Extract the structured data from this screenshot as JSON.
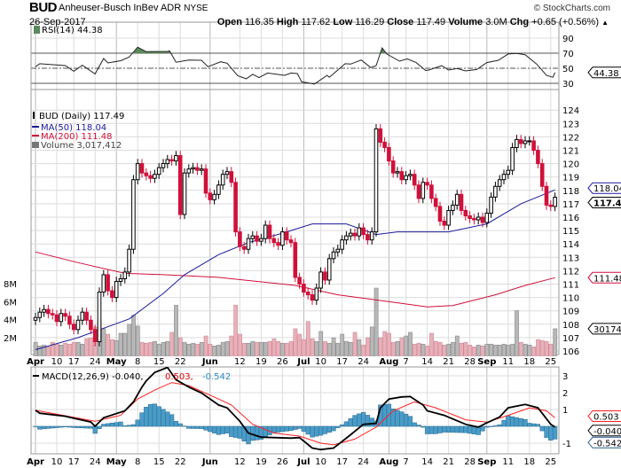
{
  "header": {
    "symbol": "BUD",
    "name": "Anheuser-Busch InBev ADR",
    "exchange": "NYSE",
    "copyright": "© StockCharts.com",
    "date": "26-Sep-2017",
    "open_label": "Open",
    "open": "116.35",
    "high_label": "High",
    "high": "117.62",
    "low_label": "Low",
    "low": "116.29",
    "close_label": "Close",
    "close": "117.49",
    "volume_label": "Volume",
    "volume": "3.0M",
    "chg_label": "Chg",
    "chg": "+0.65 (+0.56%)",
    "chg_arrow": "▲"
  },
  "colors": {
    "up": "#000000",
    "down": "#d0103a",
    "ma50": "#1a1a9c",
    "ma200": "#d0103a",
    "vol_up": "#b8b8b8",
    "vol_down": "#e8b0b8",
    "rsi_fill": "#5a8a5a",
    "hist": "#4a9cc8",
    "macd": "#000000",
    "signal": "#ff2020",
    "grid": "#dcdcdc",
    "month_grid": "#b8b8b8"
  },
  "chart_data": [
    {
      "type": "candlestick",
      "title": "BUD (Daily) 117.49",
      "legend": {
        "price": "BUD (Daily) 117.49",
        "ma50": "MA(50) 118.04",
        "ma200": "MA(200) 111.48",
        "volume": "Volume 3,017,412"
      },
      "y_ticks": [
        106,
        107,
        108,
        109,
        110,
        111,
        112,
        113,
        114,
        115,
        116,
        117,
        118,
        119,
        120,
        121,
        122,
        123,
        124
      ],
      "ylim": [
        106,
        125.5
      ],
      "volume_ticks": [
        {
          "label": "2M",
          "value": 2
        },
        {
          "label": "4M",
          "value": 4
        },
        {
          "label": "6M",
          "value": 6
        },
        {
          "label": "8M",
          "value": 8
        }
      ],
      "x_ticks": [
        {
          "label": "Apr",
          "day": 0,
          "month": true
        },
        {
          "label": "10",
          "day": 5
        },
        {
          "label": "17",
          "day": 9
        },
        {
          "label": "24",
          "day": 14
        },
        {
          "label": "May",
          "day": 19,
          "month": true
        },
        {
          "label": "8",
          "day": 24
        },
        {
          "label": "15",
          "day": 29
        },
        {
          "label": "22",
          "day": 34
        },
        {
          "label": "Jun",
          "day": 41,
          "month": true
        },
        {
          "label": "12",
          "day": 48
        },
        {
          "label": "19",
          "day": 53
        },
        {
          "label": "26",
          "day": 58
        },
        {
          "label": "Jul",
          "day": 63,
          "month": true
        },
        {
          "label": "10",
          "day": 67
        },
        {
          "label": "17",
          "day": 72
        },
        {
          "label": "24",
          "day": 77
        },
        {
          "label": "Aug",
          "day": 83,
          "month": true
        },
        {
          "label": "7",
          "day": 87
        },
        {
          "label": "14",
          "day": 92
        },
        {
          "label": "21",
          "day": 97
        },
        {
          "label": "28",
          "day": 102
        },
        {
          "label": "Sep",
          "day": 106,
          "month": true
        },
        {
          "label": "11",
          "day": 111
        },
        {
          "label": "18",
          "day": 116
        },
        {
          "label": "25",
          "day": 121
        }
      ],
      "close": [
        108.5,
        108.9,
        109.1,
        108.8,
        108.7,
        108.2,
        108.8,
        108.6,
        108.0,
        107.6,
        108.3,
        108.9,
        108.3,
        107.6,
        106.7,
        110.4,
        111.7,
        110.5,
        110.0,
        111.2,
        111.4,
        111.9,
        113.6,
        118.8,
        120.0,
        119.3,
        119.1,
        118.9,
        119.2,
        119.7,
        120.0,
        120.3,
        120.2,
        120.6,
        116.2,
        119.3,
        119.6,
        119.7,
        119.5,
        119.6,
        117.8,
        117.3,
        117.7,
        118.4,
        119.2,
        119.4,
        118.6,
        114.9,
        113.8,
        113.6,
        114.4,
        114.6,
        114.2,
        114.4,
        115.4,
        114.4,
        114.1,
        113.9,
        114.9,
        114.3,
        114.1,
        111.5,
        111.0,
        110.4,
        110.2,
        109.8,
        110.7,
        111.9,
        111.3,
        112.9,
        113.4,
        113.6,
        114.3,
        114.6,
        114.8,
        114.6,
        115.2,
        114.7,
        114.3,
        114.9,
        122.6,
        121.6,
        121.2,
        120.2,
        119.3,
        119.4,
        118.8,
        119.1,
        119.2,
        118.4,
        117.4,
        118.6,
        118.4,
        117.4,
        116.8,
        115.7,
        115.4,
        116.5,
        116.9,
        117.7,
        116.5,
        116.1,
        115.9,
        115.8,
        116.0,
        115.6,
        116.3,
        117.5,
        118.3,
        118.8,
        119.2,
        119.5,
        121.2,
        121.8,
        121.5,
        121.7,
        121.7,
        121.0,
        120.0,
        118.3,
        116.9,
        116.8,
        117.49
      ],
      "volume_millions": [
        1.5,
        1.1,
        1.2,
        1.0,
        1.5,
        1.3,
        1.2,
        1.4,
        1.3,
        1.5,
        1.5,
        1.3,
        1.9,
        2.0,
        3.2,
        4.0,
        3.0,
        2.4,
        1.8,
        1.7,
        2.5,
        2.5,
        3.5,
        4.5,
        3.3,
        1.5,
        1.4,
        1.5,
        1.6,
        1.3,
        1.5,
        1.6,
        2.6,
        5.6,
        2.0,
        1.5,
        1.3,
        1.4,
        1.3,
        1.5,
        2.2,
        1.3,
        1.1,
        1.2,
        1.5,
        1.6,
        2.2,
        5.6,
        2.4,
        1.4,
        1.4,
        1.6,
        1.5,
        1.5,
        1.5,
        1.6,
        1.9,
        1.6,
        1.4,
        1.4,
        1.6,
        3.0,
        2.4,
        1.8,
        3.8,
        1.9,
        1.6,
        2.7,
        1.6,
        1.4,
        2.0,
        1.4,
        2.4,
        1.6,
        1.5,
        2.6,
        1.8,
        1.2,
        2.0,
        3.2,
        7.5,
        2.0,
        2.7,
        2.5,
        1.5,
        1.6,
        2.0,
        2.2,
        2.6,
        1.3,
        1.4,
        1.3,
        1.1,
        2.5,
        1.6,
        1.5,
        1.2,
        1.3,
        1.5,
        2.2,
        1.4,
        1.5,
        1.2,
        1.0,
        1.2,
        1.1,
        1.3,
        1.3,
        1.2,
        1.2,
        1.3,
        1.2,
        1.3,
        5.0,
        1.5,
        1.3,
        1.2,
        1.0,
        1.8,
        1.7,
        1.6,
        1.3,
        3.0
      ],
      "ma50": [
        [
          0,
          106.1
        ],
        [
          10,
          107.0
        ],
        [
          22,
          108.4
        ],
        [
          30,
          110.3
        ],
        [
          35,
          111.7
        ],
        [
          43,
          113.2
        ],
        [
          50,
          114.1
        ],
        [
          58,
          114.8
        ],
        [
          65,
          115.5
        ],
        [
          73,
          115.5
        ],
        [
          80,
          114.7
        ],
        [
          85,
          114.9
        ],
        [
          92,
          114.9
        ],
        [
          97,
          114.9
        ],
        [
          106,
          115.5
        ],
        [
          114,
          117.0
        ],
        [
          122,
          118.04
        ]
      ],
      "ma200": [
        [
          0,
          113.4
        ],
        [
          10,
          112.6
        ],
        [
          21,
          111.8
        ],
        [
          30,
          111.7
        ],
        [
          43,
          111.5
        ],
        [
          61,
          110.9
        ],
        [
          71,
          110.2
        ],
        [
          85,
          109.6
        ],
        [
          92,
          109.3
        ],
        [
          98,
          109.4
        ],
        [
          108,
          110.2
        ],
        [
          115,
          110.9
        ],
        [
          122,
          111.48
        ]
      ],
      "last_labels": {
        "ma50": "118.04",
        "close": "117.49",
        "ma200": "111.48",
        "volume": "3017412"
      }
    },
    {
      "type": "line",
      "title": "RSI(14) 44.38",
      "y_ticks": [
        30,
        50,
        70,
        90
      ],
      "ylim": [
        20,
        110
      ],
      "series": [
        [
          0,
          52
        ],
        [
          1,
          56
        ],
        [
          7,
          53.5
        ],
        [
          9,
          46
        ],
        [
          11,
          54
        ],
        [
          14,
          42.5
        ],
        [
          16,
          63
        ],
        [
          17,
          57
        ],
        [
          20,
          60
        ],
        [
          22,
          65
        ],
        [
          24,
          78
        ],
        [
          26,
          72
        ],
        [
          31,
          72.4
        ],
        [
          31.5,
          73
        ],
        [
          33,
          58
        ],
        [
          36,
          61
        ],
        [
          39,
          60.6
        ],
        [
          40.5,
          52
        ],
        [
          43.5,
          58.6
        ],
        [
          45,
          56.7
        ],
        [
          47.5,
          40
        ],
        [
          49.5,
          36
        ],
        [
          51,
          42
        ],
        [
          52.5,
          37.5
        ],
        [
          54.5,
          43.7
        ],
        [
          58.5,
          40.6
        ],
        [
          60,
          43.7
        ],
        [
          61.5,
          43
        ],
        [
          62.5,
          32
        ],
        [
          65.5,
          29
        ],
        [
          68.5,
          40.6
        ],
        [
          69,
          38
        ],
        [
          72.7,
          56
        ],
        [
          74,
          55.5
        ],
        [
          76.5,
          61
        ],
        [
          78.7,
          51
        ],
        [
          80,
          53.5
        ],
        [
          81.4,
          77
        ],
        [
          82.5,
          69
        ],
        [
          85.5,
          59.4
        ],
        [
          87.3,
          62.5
        ],
        [
          89.4,
          57.5
        ],
        [
          91.6,
          47
        ],
        [
          92.4,
          47.6
        ],
        [
          95.4,
          53.5
        ],
        [
          97,
          47.6
        ],
        [
          99,
          49.6
        ],
        [
          101,
          46.5
        ],
        [
          103.6,
          48.4
        ],
        [
          106,
          57.5
        ],
        [
          108.7,
          60.6
        ],
        [
          111,
          69
        ],
        [
          113,
          69.6
        ],
        [
          115,
          68
        ],
        [
          117.7,
          55.5
        ],
        [
          120,
          40.6
        ],
        [
          121.5,
          38
        ],
        [
          122,
          44.38
        ]
      ],
      "last_label": "44.38"
    },
    {
      "type": "line",
      "title": "MACD(12,26,9) -0.040, 0.503, -0.542",
      "legend": {
        "name": "MACD(12,26,9)",
        "macd": "-0.040,",
        "signal": "0.503,",
        "hist": "-0.542"
      },
      "y_ticks": [
        -1,
        1,
        2,
        3
      ],
      "ylim": [
        -1.7,
        3.3
      ],
      "macd": [
        [
          0,
          0.95
        ],
        [
          1,
          0.78
        ],
        [
          7,
          0.6
        ],
        [
          9,
          0.48
        ],
        [
          13,
          0.26
        ],
        [
          14,
          0.0
        ],
        [
          16,
          0.51
        ],
        [
          21,
          0.92
        ],
        [
          23,
          1.45
        ],
        [
          25,
          2.33
        ],
        [
          26,
          2.7
        ],
        [
          28,
          3.2
        ],
        [
          31,
          3.5
        ],
        [
          33,
          2.77
        ],
        [
          36,
          2.33
        ],
        [
          39,
          1.98
        ],
        [
          43,
          1.27
        ],
        [
          45,
          1.1
        ],
        [
          48,
          0.3
        ],
        [
          50,
          -0.4
        ],
        [
          53,
          -0.64
        ],
        [
          56,
          -0.67
        ],
        [
          60,
          -0.7
        ],
        [
          62,
          -0.67
        ],
        [
          65,
          -1.29
        ],
        [
          67,
          -1.38
        ],
        [
          70,
          -1.29
        ],
        [
          74,
          -0.5
        ],
        [
          77,
          0.12
        ],
        [
          80,
          0.18
        ],
        [
          81,
          1.1
        ],
        [
          83,
          1.62
        ],
        [
          86,
          1.75
        ],
        [
          88,
          1.77
        ],
        [
          91,
          1.27
        ],
        [
          92,
          0.92
        ],
        [
          96,
          0.65
        ],
        [
          101,
          0.12
        ],
        [
          104,
          -0.05
        ],
        [
          106,
          0.21
        ],
        [
          109,
          0.56
        ],
        [
          111,
          1.1
        ],
        [
          115,
          1.3
        ],
        [
          118,
          1.1
        ],
        [
          121,
          0.12
        ],
        [
          122,
          -0.04
        ]
      ],
      "signal": [
        [
          0,
          0.95
        ],
        [
          14,
          0.3
        ],
        [
          20,
          0.65
        ],
        [
          24,
          1.62
        ],
        [
          28,
          2.15
        ],
        [
          32,
          2.6
        ],
        [
          36,
          2.42
        ],
        [
          43,
          1.62
        ],
        [
          46,
          1.27
        ],
        [
          51,
          0.12
        ],
        [
          56,
          -0.4
        ],
        [
          62,
          -0.58
        ],
        [
          67,
          -1.0
        ],
        [
          70,
          -1.1
        ],
        [
          75,
          -0.76
        ],
        [
          80,
          -0.05
        ],
        [
          84,
          0.92
        ],
        [
          89,
          1.45
        ],
        [
          94,
          1.1
        ],
        [
          101,
          0.39
        ],
        [
          106,
          0.25
        ],
        [
          111,
          0.65
        ],
        [
          116,
          1.1
        ],
        [
          120,
          0.92
        ],
        [
          122,
          0.503
        ]
      ],
      "last_labels": {
        "signal": "0.503",
        "macd": "-0.040",
        "hist": "-0.542"
      }
    }
  ]
}
